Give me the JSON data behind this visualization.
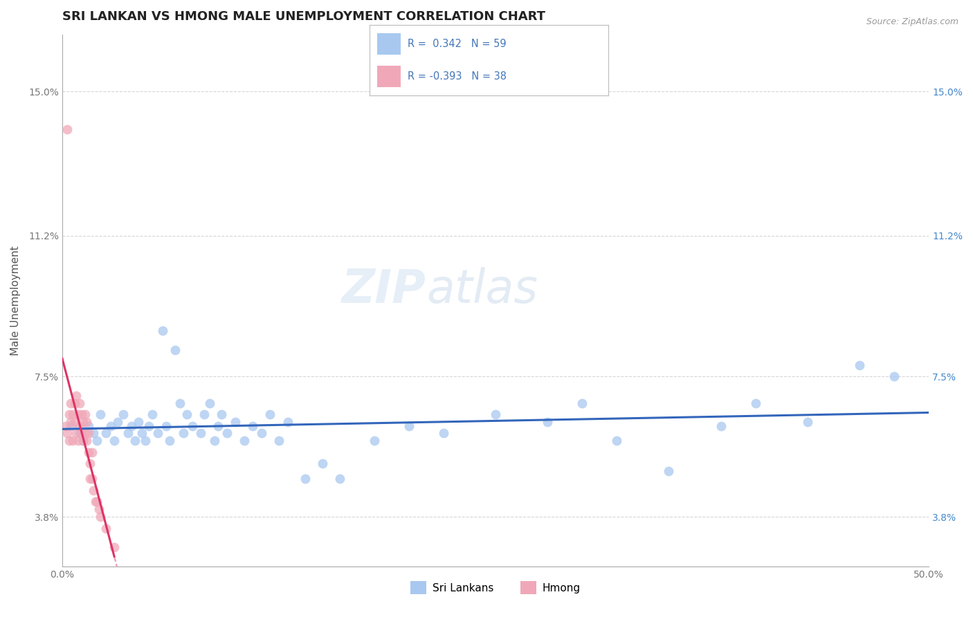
{
  "title": "SRI LANKAN VS HMONG MALE UNEMPLOYMENT CORRELATION CHART",
  "source": "Source: ZipAtlas.com",
  "ylabel": "Male Unemployment",
  "xlim": [
    0.0,
    0.5
  ],
  "ylim": [
    0.025,
    0.165
  ],
  "yticks": [
    0.038,
    0.075,
    0.112,
    0.15
  ],
  "ytick_labels": [
    "3.8%",
    "7.5%",
    "11.2%",
    "15.0%"
  ],
  "xticks": [
    0.0,
    0.1,
    0.2,
    0.3,
    0.4,
    0.5
  ],
  "xtick_labels": [
    "0.0%",
    "",
    "",
    "",
    "",
    "50.0%"
  ],
  "sri_lankan_R": 0.342,
  "sri_lankan_N": 59,
  "hmong_R": -0.393,
  "hmong_N": 38,
  "sri_lankan_color": "#a8c8f0",
  "hmong_color": "#f0a8b8",
  "sri_lankan_line_color": "#3366bb",
  "hmong_line_color": "#dd3366",
  "background_color": "#ffffff",
  "title_fontsize": 13,
  "axis_label_fontsize": 11,
  "tick_fontsize": 10,
  "right_tick_color": "#4488cc",
  "sri_lankans_label": "Sri Lankans",
  "hmong_label": "Hmong",
  "sri_lankan_scatter_x": [
    0.005,
    0.01,
    0.012,
    0.015,
    0.018,
    0.02,
    0.022,
    0.025,
    0.028,
    0.03,
    0.032,
    0.035,
    0.038,
    0.04,
    0.042,
    0.044,
    0.046,
    0.048,
    0.05,
    0.052,
    0.055,
    0.058,
    0.06,
    0.062,
    0.065,
    0.068,
    0.07,
    0.072,
    0.075,
    0.08,
    0.082,
    0.085,
    0.088,
    0.09,
    0.092,
    0.095,
    0.1,
    0.105,
    0.11,
    0.115,
    0.12,
    0.125,
    0.13,
    0.14,
    0.15,
    0.16,
    0.18,
    0.2,
    0.22,
    0.25,
    0.28,
    0.3,
    0.32,
    0.35,
    0.38,
    0.4,
    0.43,
    0.46,
    0.48
  ],
  "sri_lankan_scatter_y": [
    0.062,
    0.06,
    0.058,
    0.062,
    0.06,
    0.058,
    0.065,
    0.06,
    0.062,
    0.058,
    0.063,
    0.065,
    0.06,
    0.062,
    0.058,
    0.063,
    0.06,
    0.058,
    0.062,
    0.065,
    0.06,
    0.087,
    0.062,
    0.058,
    0.082,
    0.068,
    0.06,
    0.065,
    0.062,
    0.06,
    0.065,
    0.068,
    0.058,
    0.062,
    0.065,
    0.06,
    0.063,
    0.058,
    0.062,
    0.06,
    0.065,
    0.058,
    0.063,
    0.048,
    0.052,
    0.048,
    0.058,
    0.062,
    0.06,
    0.065,
    0.063,
    0.068,
    0.058,
    0.05,
    0.062,
    0.068,
    0.063,
    0.078,
    0.075
  ],
  "hmong_scatter_x": [
    0.002,
    0.003,
    0.003,
    0.004,
    0.004,
    0.005,
    0.005,
    0.006,
    0.006,
    0.007,
    0.007,
    0.008,
    0.008,
    0.009,
    0.009,
    0.01,
    0.01,
    0.011,
    0.011,
    0.012,
    0.012,
    0.013,
    0.013,
    0.014,
    0.014,
    0.015,
    0.015,
    0.016,
    0.016,
    0.017,
    0.017,
    0.018,
    0.019,
    0.02,
    0.021,
    0.022,
    0.025,
    0.03
  ],
  "hmong_scatter_y": [
    0.062,
    0.06,
    0.14,
    0.065,
    0.058,
    0.063,
    0.068,
    0.065,
    0.058,
    0.063,
    0.068,
    0.07,
    0.06,
    0.065,
    0.058,
    0.068,
    0.062,
    0.065,
    0.06,
    0.063,
    0.058,
    0.065,
    0.06,
    0.058,
    0.063,
    0.06,
    0.055,
    0.052,
    0.048,
    0.055,
    0.048,
    0.045,
    0.042,
    0.042,
    0.04,
    0.038,
    0.035,
    0.03
  ]
}
